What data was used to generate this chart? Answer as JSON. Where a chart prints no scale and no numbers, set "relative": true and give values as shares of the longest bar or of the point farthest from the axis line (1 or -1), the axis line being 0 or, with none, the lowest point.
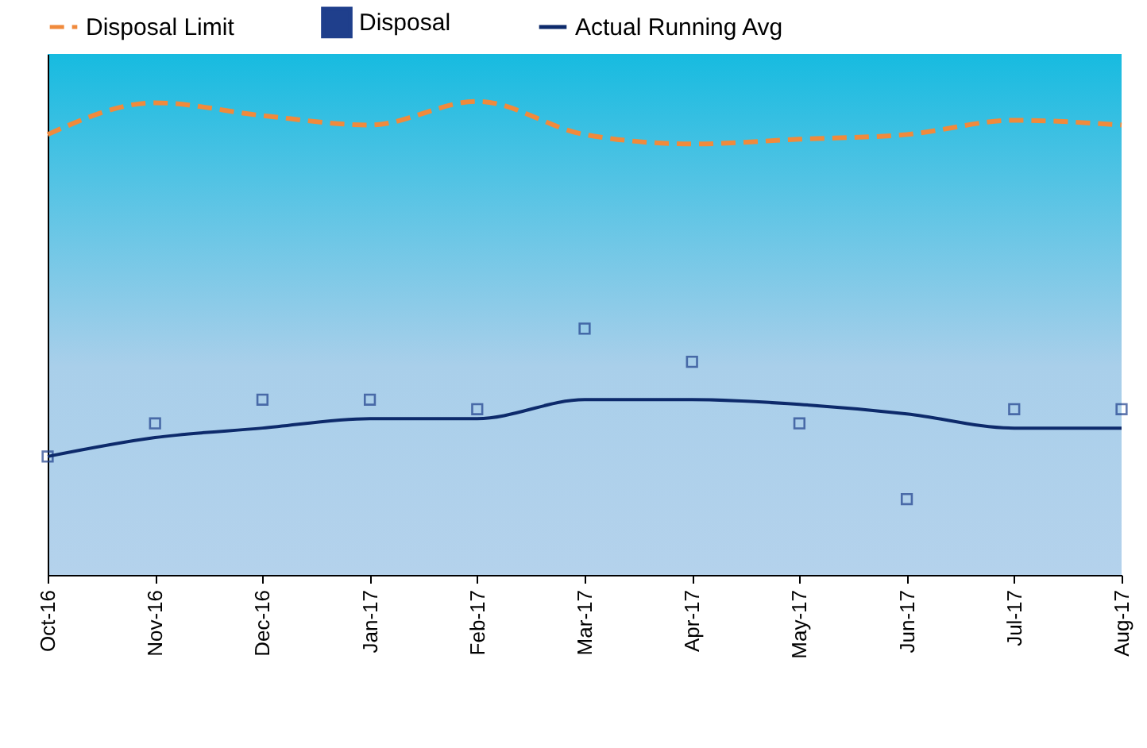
{
  "chart_data": {
    "type": "line",
    "relative": true,
    "legend": "top",
    "categories": [
      "Oct-16",
      "Nov-16",
      "Dec-16",
      "Jan-17",
      "Feb-17",
      "Mar-17",
      "Apr-17",
      "May-17",
      "Jun-17",
      "Jul-17",
      "Aug-17"
    ],
    "series": [
      {
        "name": "Disposal Limit",
        "line_style": "dashed",
        "marker": "none",
        "color": "#f08a3c",
        "values": [
          0.93,
          0.997,
          0.97,
          0.95,
          1.0,
          0.93,
          0.91,
          0.92,
          0.93,
          0.96,
          0.95
        ]
      },
      {
        "name": "Disposal",
        "type": "scatter",
        "marker": "square",
        "color": "#1f3f8c",
        "values": [
          0.25,
          0.32,
          0.37,
          0.37,
          0.35,
          0.52,
          0.45,
          0.32,
          0.16,
          0.35,
          0.35
        ]
      },
      {
        "name": "Actual Running Avg",
        "line_style": "solid",
        "marker": "none",
        "color": "#0d2a6b",
        "values": [
          0.25,
          0.29,
          0.31,
          0.33,
          0.33,
          0.37,
          0.37,
          0.36,
          0.34,
          0.31,
          0.31
        ]
      }
    ]
  }
}
